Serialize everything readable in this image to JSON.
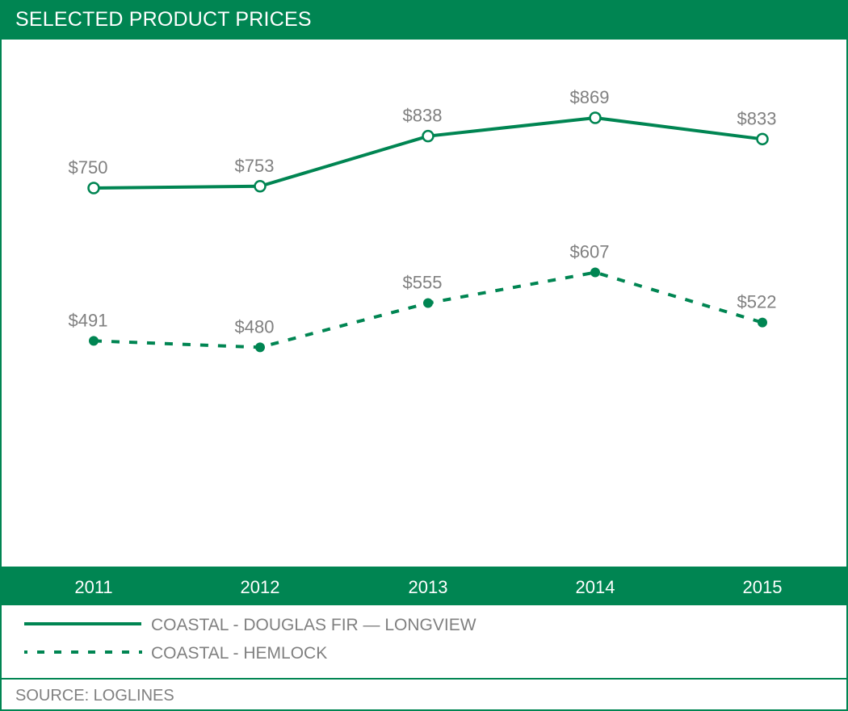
{
  "header": {
    "title": "SELECTED PRODUCT PRICES"
  },
  "colors": {
    "brand_green": "#008552",
    "label_gray": "#808080"
  },
  "chart_data": {
    "type": "line",
    "title": "SELECTED PRODUCT PRICES",
    "xlabel": "",
    "ylabel": "",
    "categories": [
      "2011",
      "2012",
      "2013",
      "2014",
      "2015"
    ],
    "ylim": [
      0,
      1000
    ],
    "grid": false,
    "legend_position": "bottom",
    "series": [
      {
        "name": "COASTAL - DOUGLAS FIR — LONGVIEW",
        "style": "solid",
        "marker": "open-circle",
        "values": [
          750,
          753,
          838,
          869,
          833
        ],
        "labels": [
          "$750",
          "$753",
          "$838",
          "$869",
          "$833"
        ]
      },
      {
        "name": "COASTAL - HEMLOCK",
        "style": "dashed",
        "marker": "filled-circle",
        "values": [
          491,
          480,
          555,
          607,
          522
        ],
        "labels": [
          "$491",
          "$480",
          "$555",
          "$607",
          "$522"
        ]
      }
    ]
  },
  "legend": {
    "items": [
      {
        "label": "COASTAL - DOUGLAS FIR — LONGVIEW",
        "style": "solid"
      },
      {
        "label": "COASTAL - HEMLOCK",
        "style": "dashed"
      }
    ]
  },
  "footer": {
    "source": "SOURCE: LOGLINES"
  }
}
